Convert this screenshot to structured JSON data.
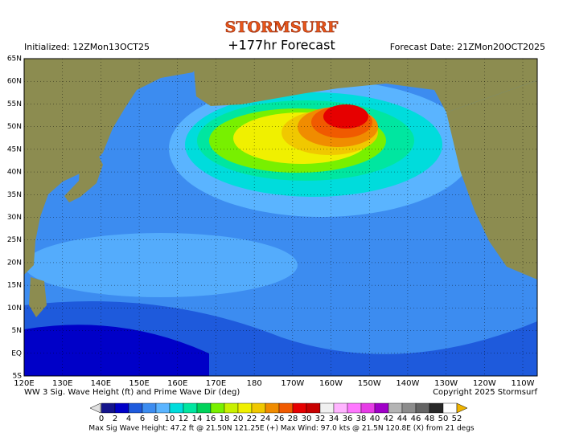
{
  "header": {
    "logo": "STORMSURF",
    "title": "+177hr Forecast",
    "initialized": "Initialized: 12ZMon13OCT25",
    "forecast_date": "Forecast Date: 21ZMon20OCT2025"
  },
  "map": {
    "lat_labels": [
      "65N",
      "60N",
      "55N",
      "50N",
      "45N",
      "40N",
      "35N",
      "30N",
      "25N",
      "20N",
      "15N",
      "10N",
      "5N",
      "EQ",
      "5S"
    ],
    "lon_labels": [
      "120E",
      "130E",
      "140E",
      "150E",
      "160E",
      "170E",
      "180",
      "170W",
      "160W",
      "150W",
      "140W",
      "130W",
      "120W",
      "110W"
    ]
  },
  "footer": {
    "caption": "WW 3 Sig. Wave Height (ft) and Prime Wave Dir (deg)",
    "copyright": "Copyright 2025 Stormsurf",
    "stats": "Max Sig Wave Height: 47.2 ft @ 21.50N 121.25E (+)    Max Wind: 97.0 kts @ 21.5N 120.8E (X) from 21  degs"
  },
  "colorbar": {
    "labels": [
      0,
      2,
      4,
      6,
      8,
      10,
      12,
      14,
      16,
      18,
      20,
      22,
      24,
      26,
      28,
      30,
      32,
      34,
      36,
      38,
      40,
      42,
      44,
      46,
      48,
      50,
      52
    ],
    "colors": [
      "#14148c",
      "#0000c8",
      "#1e5adc",
      "#3c8cf0",
      "#5ab4ff",
      "#00dcdc",
      "#00e6a0",
      "#00d25a",
      "#78f000",
      "#c8f000",
      "#f0f000",
      "#f0c800",
      "#f08c00",
      "#f05a00",
      "#e60000",
      "#c80000",
      "#f0f0f0",
      "#ffb4ff",
      "#ff78ff",
      "#e63ce6",
      "#a000c8",
      "#b4b4b4",
      "#8c8c8c",
      "#646464",
      "#282828",
      "#ffffff"
    ]
  }
}
